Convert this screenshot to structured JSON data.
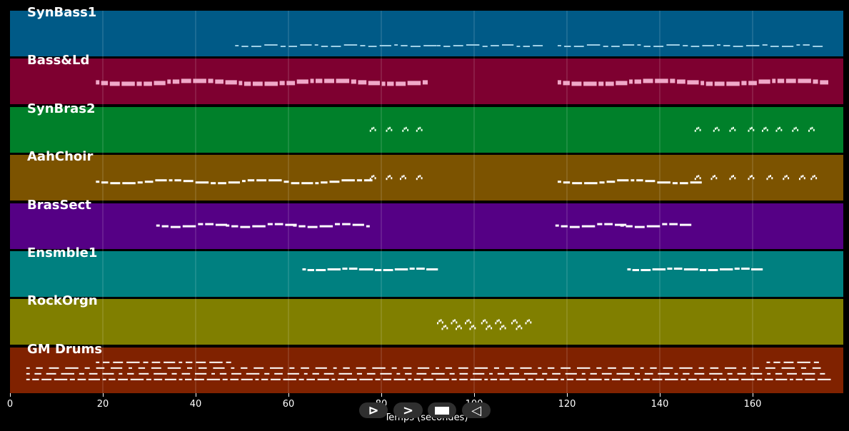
{
  "tracks": [
    {
      "name": "SynBass1",
      "color": "#005a87",
      "note_color": "#9fd0e6"
    },
    {
      "name": "Bass&Ld",
      "color": "#7e0030",
      "note_color": "#f0a8c8"
    },
    {
      "name": "SynBras2",
      "color": "#00802a",
      "note_color": "#e8ffe8"
    },
    {
      "name": "AahChoir",
      "color": "#7c5300",
      "note_color": "#ffffff"
    },
    {
      "name": "BrasSect",
      "color": "#550085",
      "note_color": "#ffffff"
    },
    {
      "name": "Ensmble1",
      "color": "#008080",
      "note_color": "#ffffff"
    },
    {
      "name": "RockOrgn",
      "color": "#807f00",
      "note_color": "#ffffff"
    },
    {
      "name": "GM Drums",
      "color": "#802200",
      "note_color": "#ffffff"
    }
  ],
  "axis": {
    "xlabel": "Temps (secondes)",
    "ticks": [
      "0",
      "20",
      "40",
      "60",
      "80",
      "100",
      "120",
      "140",
      "160"
    ],
    "range": [
      0,
      180
    ]
  },
  "transport": {
    "prev_glyph": "⊳",
    "play_glyph": ">",
    "next_glyph": "◁"
  }
}
